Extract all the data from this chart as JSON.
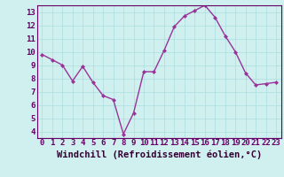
{
  "x": [
    0,
    1,
    2,
    3,
    4,
    5,
    6,
    7,
    8,
    9,
    10,
    11,
    12,
    13,
    14,
    15,
    16,
    17,
    18,
    19,
    20,
    21,
    22,
    23
  ],
  "y": [
    9.8,
    9.4,
    9.0,
    7.8,
    8.9,
    7.7,
    6.7,
    6.4,
    3.8,
    5.4,
    8.5,
    8.5,
    10.1,
    11.9,
    12.7,
    13.1,
    13.5,
    12.6,
    11.2,
    10.0,
    8.4,
    7.5,
    7.6,
    7.7
  ],
  "line_color": "#993399",
  "marker_color": "#993399",
  "bg_color": "#cff0ee",
  "grid_color": "#aadddd",
  "xlabel": "Windchill (Refroidissement éolien,°C)",
  "xlim": [
    -0.5,
    23.5
  ],
  "ylim": [
    3.5,
    13.5
  ],
  "yticks": [
    4,
    5,
    6,
    7,
    8,
    9,
    10,
    11,
    12,
    13
  ],
  "xticks": [
    0,
    1,
    2,
    3,
    4,
    5,
    6,
    7,
    8,
    9,
    10,
    11,
    12,
    13,
    14,
    15,
    16,
    17,
    18,
    19,
    20,
    21,
    22,
    23
  ],
  "tick_label_size": 6.5,
  "xlabel_fontsize": 7.5
}
